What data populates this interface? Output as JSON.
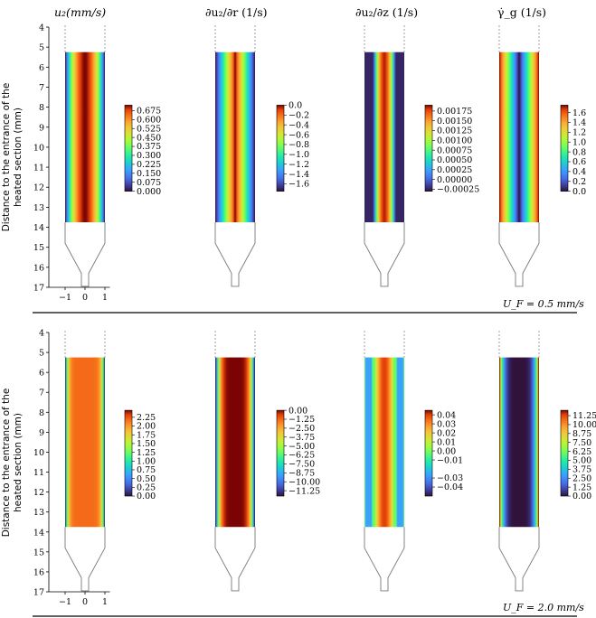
{
  "figure": {
    "ylabel_line1": "Distance to the entrance of the",
    "ylabel_line2": "heated section (mm)"
  },
  "panels": [
    {
      "title": "u₂(mm/s)"
    },
    {
      "title": "∂u₂/∂r (1/s)"
    },
    {
      "title": "∂u₂/∂z (1/s)"
    },
    {
      "title": "γ̇_g (1/s)"
    }
  ],
  "rows": [
    {
      "condition": "U_F = 0.5 mm/s"
    },
    {
      "condition": "U_F = 2.0 mm/s"
    }
  ],
  "colors": {
    "turbo_low": "#30123b",
    "turbo_high": "#7a0403"
  },
  "chart_data": {
    "type": "heatmap",
    "ylabel": "Distance to the entrance of the heated section (mm)",
    "xlim": [
      -1.2,
      1.2
    ],
    "x_ticks": [
      "−1",
      "0",
      "1"
    ],
    "ylim": [
      4,
      17
    ],
    "y_ticks": [
      "4",
      "5",
      "6",
      "7",
      "8",
      "9",
      "10",
      "11",
      "12",
      "13",
      "14",
      "15",
      "16",
      "17"
    ],
    "heated_section": [
      5.25,
      13.75
    ],
    "rows": [
      {
        "condition": "U_F = 0.5 mm/s",
        "fields": [
          {
            "name": "u_z",
            "unit": "mm/s",
            "min": 0.0,
            "max": 0.72,
            "colorbar_ticks": [
              "0.675",
              "0.600",
              "0.525",
              "0.450",
              "0.375",
              "0.300",
              "0.225",
              "0.150",
              "0.075",
              "0.000"
            ],
            "profile": "parabolic",
            "peak": "center"
          },
          {
            "name": "du_z/dr",
            "unit": "1/s",
            "min": -1.75,
            "max": 0.0,
            "colorbar_ticks": [
              "0.0",
              "−0.2",
              "−0.4",
              "−0.6",
              "−0.8",
              "−1.0",
              "−1.2",
              "−1.4",
              "−1.6"
            ],
            "profile": "linear",
            "peak": "center"
          },
          {
            "name": "du_z/dz",
            "unit": "1/s",
            "min": -0.0003,
            "max": 0.0019,
            "colorbar_ticks": [
              "0.00175",
              "0.00150",
              "0.00125",
              "0.00100",
              "0.00075",
              "0.00050",
              "0.00025",
              "0.00000",
              "−0.00025"
            ],
            "profile": "center-band",
            "peak": "center"
          },
          {
            "name": "gamma_dot_g",
            "unit": "1/s",
            "min": 0.0,
            "max": 1.75,
            "colorbar_ticks": [
              "1.6",
              "1.4",
              "1.2",
              "1.0",
              "0.8",
              "0.6",
              "0.4",
              "0.2",
              "0.0"
            ],
            "profile": "abs-linear",
            "peak": "wall"
          }
        ]
      },
      {
        "condition": "U_F = 2.0 mm/s",
        "fields": [
          {
            "name": "u_z",
            "unit": "mm/s",
            "min": 0.0,
            "max": 2.45,
            "colorbar_ticks": [
              "2.25",
              "2.00",
              "1.75",
              "1.50",
              "1.25",
              "1.00",
              "0.75",
              "0.50",
              "0.25",
              "0.00"
            ],
            "profile": "flat",
            "peak": "center"
          },
          {
            "name": "du_z/dr",
            "unit": "1/s",
            "min": -12.0,
            "max": 0.0,
            "colorbar_ticks": [
              "0.00",
              "−1.25",
              "−2.50",
              "−3.75",
              "−5.00",
              "−6.25",
              "−7.50",
              "−8.75",
              "−10.00",
              "−11.25"
            ],
            "profile": "wall-steep",
            "peak": "center"
          },
          {
            "name": "du_z/dz",
            "unit": "1/s",
            "min": -0.05,
            "max": 0.045,
            "colorbar_ticks": [
              "0.04",
              "0.03",
              "0.02",
              "0.01",
              "0.00",
              "−0.01",
              "−0.03",
              "−0.04"
            ],
            "profile": "converging-bands",
            "peak": "center"
          },
          {
            "name": "gamma_dot_g",
            "unit": "1/s",
            "min": 0.0,
            "max": 12.0,
            "colorbar_ticks": [
              "11.25",
              "10.00",
              "8.75",
              "7.50",
              "6.25",
              "5.00",
              "3.75",
              "2.50",
              "1.25",
              "0.00"
            ],
            "profile": "wall-steep-abs",
            "peak": "wall"
          }
        ]
      }
    ]
  }
}
